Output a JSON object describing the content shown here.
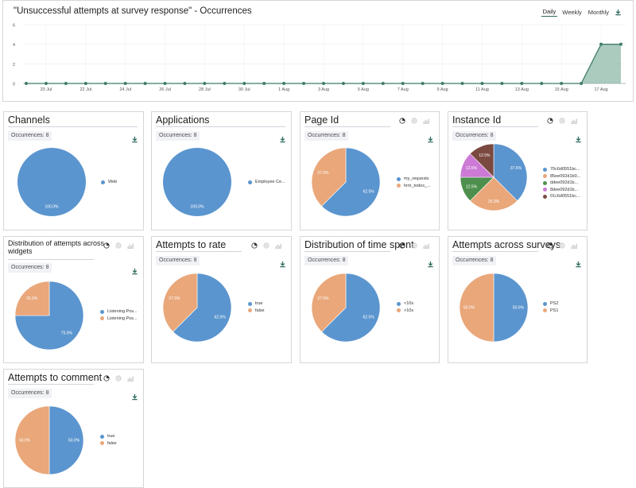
{
  "top": {
    "title": "\"Unsuccessful attempts at survey response\" - Occurrences",
    "tabs": [
      "Daily",
      "Weekly",
      "Monthly"
    ],
    "active_tab": "Daily",
    "download_icon": "download-icon"
  },
  "chart_data": {
    "type": "area",
    "title": "\"Unsuccessful attempts at survey response\" - Occurrences",
    "xlabel": "",
    "ylabel": "",
    "x_ticks": [
      "20 Jul",
      "22 Jul",
      "24 Jul",
      "26 Jul",
      "28 Jul",
      "30 Jul",
      "1 Aug",
      "3 Aug",
      "5 Aug",
      "7 Aug",
      "9 Aug",
      "11 Aug",
      "13 Aug",
      "15 Aug",
      "17 Aug"
    ],
    "y_ticks": [
      0,
      2,
      4,
      6
    ],
    "ylim": [
      0,
      6
    ],
    "x": [
      "19 Jul",
      "20 Jul",
      "21 Jul",
      "22 Jul",
      "23 Jul",
      "24 Jul",
      "25 Jul",
      "26 Jul",
      "27 Jul",
      "28 Jul",
      "29 Jul",
      "30 Jul",
      "31 Jul",
      "1 Aug",
      "2 Aug",
      "3 Aug",
      "4 Aug",
      "5 Aug",
      "6 Aug",
      "7 Aug",
      "8 Aug",
      "9 Aug",
      "10 Aug",
      "11 Aug",
      "12 Aug",
      "13 Aug",
      "14 Aug",
      "15 Aug",
      "16 Aug",
      "17 Aug",
      "18 Aug"
    ],
    "values": [
      0,
      0,
      0,
      0,
      0,
      0,
      0,
      0,
      0,
      0,
      0,
      0,
      0,
      0,
      0,
      0,
      0,
      0,
      0,
      0,
      0,
      0,
      0,
      0,
      0,
      0,
      0,
      0,
      0,
      4,
      4
    ],
    "grid": true,
    "colors": {
      "line": "#3e7d6a",
      "fill": "#8fb9a8"
    }
  },
  "cards": [
    {
      "title": "Channels",
      "occurrences": "Occurrences: 8",
      "has_toggles": false,
      "slices": [
        {
          "label": "Web",
          "value": 100.0,
          "pct": "100.0%",
          "color": "#5b95cf"
        }
      ]
    },
    {
      "title": "Applications",
      "occurrences": "Occurrences: 8",
      "has_toggles": false,
      "slices": [
        {
          "label": "Employee Ce...",
          "value": 100.0,
          "pct": "100.0%",
          "color": "#5b95cf"
        }
      ]
    },
    {
      "title": "Page Id",
      "occurrences": "Occurrences: 8",
      "has_toggles": true,
      "slices": [
        {
          "label": "my_requests",
          "value": 62.5,
          "pct": "62.5%",
          "color": "#5b95cf"
        },
        {
          "label": "hrm_todos_...",
          "value": 37.5,
          "pct": "37.5%",
          "color": "#e9a77a"
        }
      ]
    },
    {
      "title": "Instance Id",
      "occurrences": "Occurrences: 8",
      "has_toggles": true,
      "slices": [
        {
          "label": "70c6d0551bc...",
          "value": 37.5,
          "pct": "37.5%",
          "color": "#5b95cf"
        },
        {
          "label": "85ee092d1b0...",
          "value": 25.0,
          "pct": "25.0%",
          "color": "#e9a77a"
        },
        {
          "label": "ddee092d1b...",
          "value": 12.5,
          "pct": "12.5%",
          "color": "#4e8f4e"
        },
        {
          "label": "8dee092d1b...",
          "value": 12.5,
          "pct": "12.5%",
          "color": "#cc7ad6"
        },
        {
          "label": "01c6d0551bc...",
          "value": 12.5,
          "pct": "12.5%",
          "color": "#7a4a40"
        }
      ]
    },
    {
      "title": "Distribution of attempts across widgets",
      "occurrences": "Occurrences: 8",
      "has_toggles": true,
      "slices": [
        {
          "label": "Listening Pos...",
          "value": 75.0,
          "pct": "75.0%",
          "color": "#5b95cf"
        },
        {
          "label": "Listening Pos...",
          "value": 25.0,
          "pct": "25.0%",
          "color": "#e9a77a"
        }
      ]
    },
    {
      "title": "Attempts to rate",
      "occurrences": "Occurrences: 8",
      "has_toggles": true,
      "slices": [
        {
          "label": "true",
          "value": 62.5,
          "pct": "62.5%",
          "color": "#5b95cf"
        },
        {
          "label": "false",
          "value": 37.5,
          "pct": "37.5%",
          "color": "#e9a77a"
        }
      ]
    },
    {
      "title": "Distribution of time spent",
      "occurrences": "Occurrences: 8",
      "has_toggles": true,
      "slices": [
        {
          "label": "<10s",
          "value": 62.5,
          "pct": "62.5%",
          "color": "#5b95cf"
        },
        {
          "label": ">10s",
          "value": 37.5,
          "pct": "37.5%",
          "color": "#e9a77a"
        }
      ]
    },
    {
      "title": "Attempts across surveys",
      "occurrences": "Occurrences: 8",
      "has_toggles": true,
      "slices": [
        {
          "label": "PS2",
          "value": 50.0,
          "pct": "50.0%",
          "color": "#5b95cf"
        },
        {
          "label": "PS1",
          "value": 50.0,
          "pct": "50.0%",
          "color": "#e9a77a"
        }
      ]
    },
    {
      "title": "Attempts to comment",
      "occurrences": "Occurrences: 8",
      "has_toggles": true,
      "slices": [
        {
          "label": "true",
          "value": 50.0,
          "pct": "50.0%",
          "color": "#5b95cf"
        },
        {
          "label": "false",
          "value": 50.0,
          "pct": "50.0%",
          "color": "#e9a77a"
        }
      ]
    }
  ],
  "icons": {
    "pie_toggle": "pie-chart-icon",
    "donut_toggle": "donut-chart-icon",
    "bar_toggle": "bar-chart-icon",
    "download": "download-icon"
  }
}
